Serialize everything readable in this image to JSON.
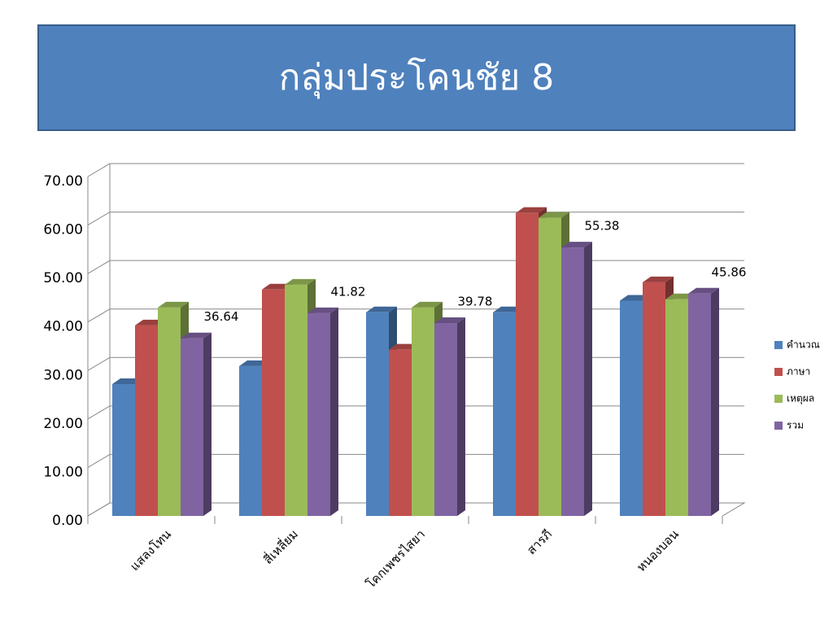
{
  "title": "กลุ่มประโคนชัย 8",
  "chart_data": {
    "type": "bar3d",
    "categories": [
      "แสลงโทน",
      "สี่เหลี่ยม",
      "โคกเพชรไสยา",
      "สารภี",
      "หนองบอน"
    ],
    "series": [
      {
        "name": "คำนวณ",
        "color": "#4f81bd",
        "values": [
          27.2,
          30.9,
          42.0,
          42.0,
          44.4
        ]
      },
      {
        "name": "ภาษา",
        "color": "#c0504d",
        "values": [
          39.3,
          46.7,
          34.3,
          62.5,
          48.2
        ]
      },
      {
        "name": "เหตุผล",
        "color": "#9bbb59",
        "values": [
          43.0,
          47.7,
          43.0,
          61.5,
          44.7
        ]
      },
      {
        "name": "รวม",
        "color": "#8064a2",
        "values": [
          36.64,
          41.82,
          39.78,
          55.38,
          45.86
        ],
        "data_labels": true
      }
    ],
    "ylim": [
      0,
      70
    ],
    "yticks": [
      {
        "value": 0,
        "label": "0.00"
      },
      {
        "value": 10,
        "label": "10.00"
      },
      {
        "value": 20,
        "label": "20.00"
      },
      {
        "value": 30,
        "label": "30.00"
      },
      {
        "value": 40,
        "label": "40.00"
      },
      {
        "value": 50,
        "label": "50.00"
      },
      {
        "value": 60,
        "label": "60.00"
      },
      {
        "value": 70,
        "label": "70.00"
      }
    ],
    "grid": true,
    "legend": "right"
  }
}
